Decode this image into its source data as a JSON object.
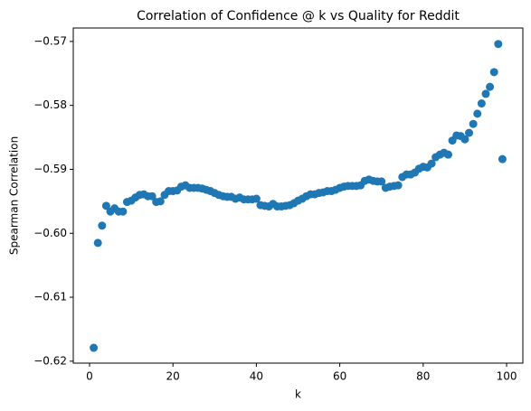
{
  "chart_data": {
    "type": "scatter",
    "title": "Correlation of Confidence @ k vs Quality for Reddit",
    "x_label": "k",
    "y_label": "Spearman Correlation",
    "color": "#1f77b4",
    "x": [
      1,
      2,
      3,
      4,
      5,
      6,
      7,
      8,
      9,
      10,
      11,
      12,
      13,
      14,
      15,
      16,
      17,
      18,
      19,
      20,
      21,
      22,
      23,
      24,
      25,
      26,
      27,
      28,
      29,
      30,
      31,
      32,
      33,
      34,
      35,
      36,
      37,
      38,
      39,
      40,
      41,
      42,
      43,
      44,
      45,
      46,
      47,
      48,
      49,
      50,
      51,
      52,
      53,
      54,
      55,
      56,
      57,
      58,
      59,
      60,
      61,
      62,
      63,
      64,
      65,
      66,
      67,
      68,
      69,
      70,
      71,
      72,
      73,
      74,
      75,
      76,
      77,
      78,
      79,
      80,
      81,
      82,
      83,
      84,
      85,
      86,
      87,
      88,
      89,
      90,
      91,
      92,
      93,
      94,
      95,
      96,
      97,
      98,
      99
    ],
    "values": [
      -0.6179,
      -0.6015,
      -0.5988,
      -0.5957,
      -0.5966,
      -0.5961,
      -0.5966,
      -0.5966,
      -0.5951,
      -0.5949,
      -0.5944,
      -0.594,
      -0.5939,
      -0.5942,
      -0.5942,
      -0.5951,
      -0.595,
      -0.594,
      -0.5934,
      -0.5934,
      -0.5933,
      -0.5927,
      -0.5925,
      -0.5929,
      -0.5929,
      -0.5929,
      -0.593,
      -0.5932,
      -0.5934,
      -0.5937,
      -0.594,
      -0.5942,
      -0.5943,
      -0.5943,
      -0.5946,
      -0.5944,
      -0.5947,
      -0.5947,
      -0.5947,
      -0.5946,
      -0.5956,
      -0.5957,
      -0.5958,
      -0.5954,
      -0.5958,
      -0.5958,
      -0.5957,
      -0.5956,
      -0.5953,
      -0.5949,
      -0.5946,
      -0.5942,
      -0.5939,
      -0.5939,
      -0.5937,
      -0.5936,
      -0.5934,
      -0.5934,
      -0.5932,
      -0.5929,
      -0.5927,
      -0.5926,
      -0.5926,
      -0.5926,
      -0.5925,
      -0.5918,
      -0.5916,
      -0.5918,
      -0.5919,
      -0.5919,
      -0.5929,
      -0.5927,
      -0.5926,
      -0.5925,
      -0.5912,
      -0.5908,
      -0.5908,
      -0.5905,
      -0.5899,
      -0.5896,
      -0.5897,
      -0.5891,
      -0.5881,
      -0.5877,
      -0.5874,
      -0.5877,
      -0.5855,
      -0.5847,
      -0.5848,
      -0.5853,
      -0.5843,
      -0.5829,
      -0.5813,
      -0.5797,
      -0.5782,
      -0.5771,
      -0.5748,
      -0.5704,
      -0.5884
    ],
    "xlim": [
      -3.9,
      103.9
    ],
    "xticks": [
      0,
      20,
      40,
      60,
      80,
      100
    ],
    "ylim": [
      -0.6203,
      -0.5679
    ],
    "yticks": [
      {
        "value": -0.62,
        "label": "−0.62"
      },
      {
        "value": -0.61,
        "label": "−0.61"
      },
      {
        "value": -0.6,
        "label": "−0.60"
      },
      {
        "value": -0.59,
        "label": "−0.59"
      },
      {
        "value": -0.58,
        "label": "−0.58"
      },
      {
        "value": -0.57,
        "label": "−0.57"
      }
    ]
  }
}
